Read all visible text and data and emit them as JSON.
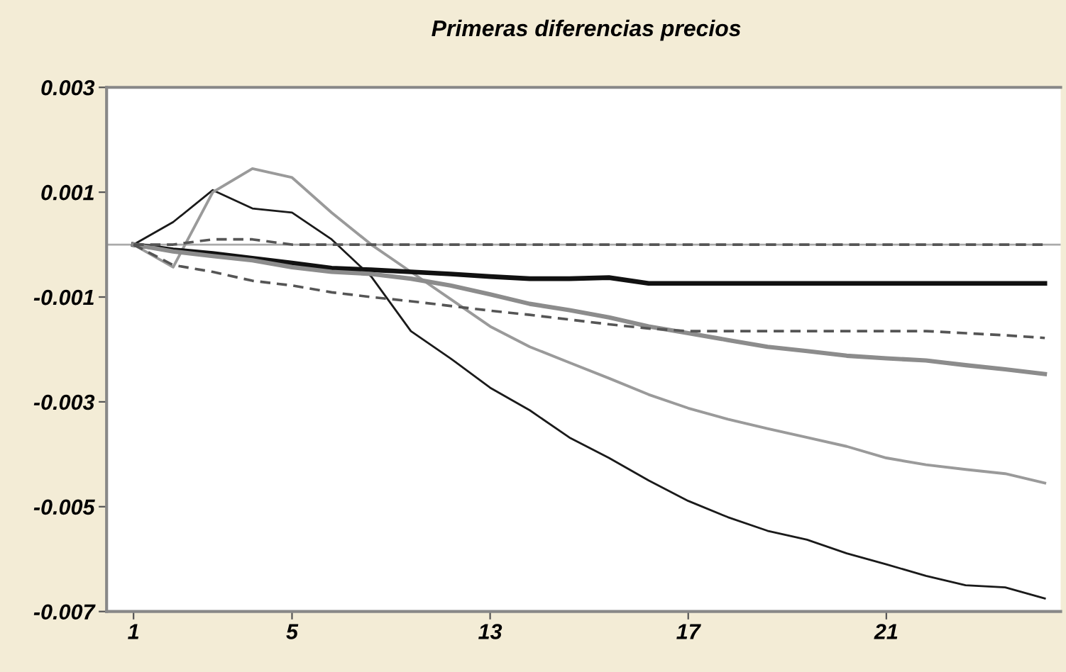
{
  "chart_data": {
    "type": "line",
    "title": "Primeras diferencias precios",
    "categories": [
      "1",
      null,
      null,
      null,
      "5",
      null,
      null,
      null,
      null,
      "13",
      null,
      null,
      null,
      null,
      "17",
      null,
      null,
      null,
      null,
      "21",
      null,
      null,
      null,
      null
    ],
    "series": [
      {
        "color": "#1a1a1a",
        "line_style": "solid",
        "values": [
          0,
          0.00043,
          0.00104,
          0.00069,
          0.00061,
          0.0001,
          -0.00061,
          -0.00165,
          -0.00217,
          -0.00273,
          -0.00316,
          -0.00368,
          -0.00407,
          -0.0045,
          -0.00489,
          -0.0052,
          -0.00546,
          -0.00563,
          -0.00589,
          -0.0061,
          -0.00632,
          -0.0065,
          -0.00654,
          -0.00675
        ]
      },
      {
        "color": "#9a9a9a",
        "line_style": "solid",
        "values": [
          0,
          -0.00043,
          0.001,
          0.00145,
          0.00128,
          0.00061,
          0,
          -0.00052,
          -0.00104,
          -0.00156,
          -0.00195,
          -0.00225,
          -0.00255,
          -0.00286,
          -0.00312,
          -0.00333,
          -0.00351,
          -0.00368,
          -0.00385,
          -0.00407,
          -0.0042,
          -0.00429,
          -0.00437,
          -0.00455
        ]
      },
      {
        "color": "#111111",
        "line_style": "solid",
        "values": [
          0,
          -0.0001,
          -0.00017,
          -0.00026,
          -0.00035,
          -0.00045,
          -0.00048,
          -0.00052,
          -0.00056,
          -0.00061,
          -0.00065,
          -0.00065,
          -0.00063,
          -0.00074,
          -0.00074,
          -0.00074,
          -0.00074,
          -0.00074,
          -0.00074,
          -0.00074,
          -0.00074,
          -0.00074,
          -0.00074,
          -0.00074
        ]
      },
      {
        "color": "#8c8c8c",
        "line_style": "solid",
        "values": [
          0,
          -0.00013,
          -0.00022,
          -0.0003,
          -0.00043,
          -0.00052,
          -0.00056,
          -0.00065,
          -0.00078,
          -0.00095,
          -0.00113,
          -0.00125,
          -0.00139,
          -0.00156,
          -0.00169,
          -0.00182,
          -0.00195,
          -0.00203,
          -0.00212,
          -0.00217,
          -0.00221,
          -0.0023,
          -0.00238,
          -0.00247
        ]
      },
      {
        "color": "#555555",
        "line_style": "dashed",
        "values": [
          0,
          0,
          0.0001,
          0.0001,
          0,
          0,
          0,
          0,
          0,
          0,
          0,
          0,
          0,
          0,
          0,
          0,
          0,
          0,
          0,
          0,
          0,
          0,
          0,
          0
        ]
      },
      {
        "color": "#555555",
        "line_style": "dashed",
        "values": [
          0,
          -0.00039,
          -0.00052,
          -0.00069,
          -0.00078,
          -0.00091,
          -0.001,
          -0.00108,
          -0.00117,
          -0.00126,
          -0.00134,
          -0.00143,
          -0.00152,
          -0.0016,
          -0.00165,
          -0.00165,
          -0.00165,
          -0.00165,
          -0.00165,
          -0.00165,
          -0.00165,
          -0.00169,
          -0.00173,
          -0.00178
        ]
      }
    ],
    "ylim": [
      -0.007,
      0.003
    ],
    "yticks": [
      0.003,
      0.001,
      -0.001,
      -0.003,
      -0.005,
      -0.007
    ],
    "ref_lines": [
      {
        "axis": "y",
        "value": 0,
        "color": "#aaaaaa"
      }
    ],
    "grid": false,
    "legend": false,
    "marker": "none"
  }
}
